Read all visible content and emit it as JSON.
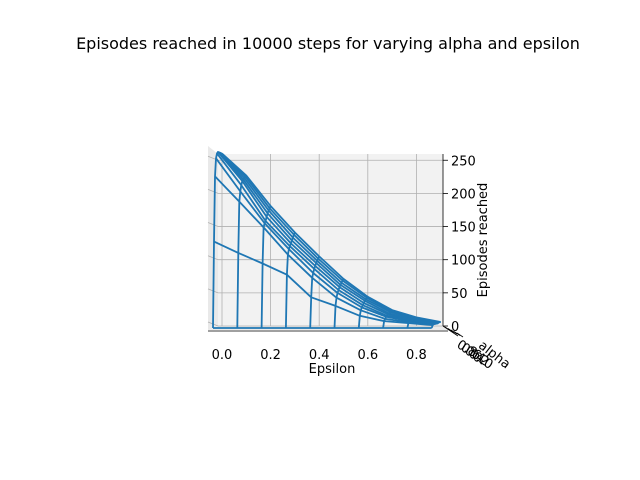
{
  "chart_data": {
    "type": "wireframe-3d",
    "title": "Episodes reached in 10000 steps for varying alpha and epsilon",
    "xlabel": "Epsilon",
    "ylabel": "alpha",
    "zlabel": "Episodes reached",
    "xlim": [
      0,
      0.9
    ],
    "zlim": [
      0,
      260
    ],
    "x_ticks": [
      "0.0",
      "0.2",
      "0.4",
      "0.6",
      "0.8"
    ],
    "z_ticks": [
      "0",
      "50",
      "100",
      "150",
      "200",
      "250"
    ],
    "y_ticks_visible": [
      "0.8",
      "0.6",
      "0.4",
      "0.2",
      "0.0"
    ],
    "epsilon": [
      0.0,
      0.1,
      0.2,
      0.3,
      0.4,
      0.5,
      0.6,
      0.7,
      0.8,
      0.9
    ],
    "alpha": [
      0.0,
      0.1,
      0.2,
      0.3,
      0.4,
      0.5,
      0.6,
      0.7,
      0.8,
      0.9
    ],
    "episodes": [
      [
        0,
        0,
        0,
        0,
        0,
        0,
        0,
        0,
        0,
        0
      ],
      [
        130,
        113,
        97,
        80,
        46,
        33,
        18,
        10,
        7,
        4
      ],
      [
        228,
        190,
        151,
        110,
        75,
        45,
        26,
        13,
        8,
        5
      ],
      [
        255,
        205,
        157,
        118,
        82,
        52,
        30,
        16,
        9,
        5
      ],
      [
        262,
        214,
        160,
        122,
        88,
        56,
        33,
        17,
        10,
        5
      ],
      [
        264,
        220,
        166,
        126,
        92,
        60,
        36,
        19,
        10,
        5
      ],
      [
        263,
        222,
        171,
        130,
        96,
        63,
        39,
        20,
        11,
        5
      ],
      [
        262,
        224,
        175,
        134,
        99,
        66,
        41,
        22,
        12,
        6
      ],
      [
        261,
        226,
        178,
        138,
        102,
        69,
        43,
        23,
        12,
        6
      ],
      [
        260,
        227,
        181,
        141,
        105,
        71,
        44,
        24,
        13,
        6
      ]
    ],
    "colors": {
      "wire": "#1f77b4",
      "pane": "#f2f2f2",
      "grid": "#b0b0b0"
    },
    "grid": true
  }
}
